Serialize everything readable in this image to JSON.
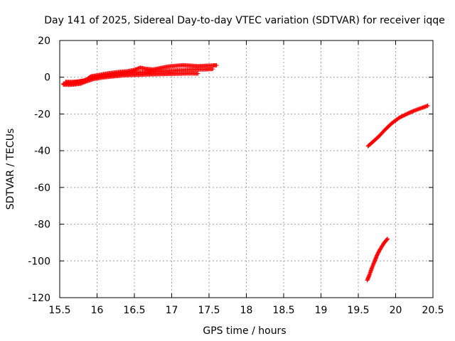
{
  "chart_data": {
    "type": "scatter",
    "title": "Day 141 of 2025, Sidereal Day-to-day VTEC variation (SDTVAR) for receiver iqqe",
    "xlabel": "GPS time / hours",
    "ylabel": "SDTVAR / TECUs",
    "xlim": [
      15.5,
      20.5
    ],
    "ylim": [
      -120,
      20
    ],
    "xticks": [
      "15.5",
      "16",
      "16.5",
      "17",
      "17.5",
      "18",
      "18.5",
      "19",
      "19.5",
      "20",
      "20.5"
    ],
    "yticks": [
      "20",
      "0",
      "-20",
      "-40",
      "-60",
      "-80",
      "-100",
      "-120"
    ],
    "grid": true,
    "marker": "plus",
    "color": "#ff0000",
    "segments": [
      {
        "x": [
          15.55,
          15.62,
          15.7,
          15.78,
          15.85,
          15.92,
          16.0,
          16.1,
          16.2,
          16.3,
          16.4,
          16.5,
          16.58,
          16.65,
          16.75,
          16.85,
          16.95,
          17.05,
          17.15,
          17.25,
          17.35,
          17.45,
          17.55,
          17.6
        ],
        "y": [
          -3.5,
          -3.2,
          -2.8,
          -2.2,
          -1.5,
          0.5,
          1.0,
          1.8,
          2.4,
          2.9,
          3.2,
          4.0,
          5.2,
          4.6,
          4.2,
          5.0,
          5.8,
          6.2,
          6.5,
          6.3,
          6.0,
          6.2,
          6.4,
          6.5
        ]
      },
      {
        "x": [
          15.55,
          15.62,
          15.7,
          15.78,
          15.85,
          15.95,
          16.05,
          16.15,
          16.25,
          16.35,
          16.45,
          16.55,
          16.65,
          16.75,
          16.85,
          16.95,
          17.05,
          17.15,
          17.25,
          17.35
        ],
        "y": [
          -4.0,
          -4.1,
          -3.9,
          -3.5,
          -2.4,
          -1.0,
          -0.3,
          0.2,
          0.6,
          1.0,
          1.2,
          1.3,
          1.5,
          1.6,
          1.7,
          1.8,
          1.9,
          2.0,
          2.1,
          2.0
        ]
      },
      {
        "x": [
          15.58,
          15.66,
          15.75,
          15.83,
          15.92,
          16.02,
          16.12,
          16.22,
          16.32,
          16.45,
          16.55,
          16.7,
          16.85,
          17.0,
          17.15,
          17.3,
          17.45,
          17.55
        ],
        "y": [
          -2.5,
          -2.6,
          -2.3,
          -1.8,
          -0.5,
          0.2,
          0.8,
          1.3,
          1.8,
          2.3,
          2.6,
          3.0,
          3.3,
          3.6,
          3.9,
          4.1,
          4.3,
          4.5
        ]
      },
      {
        "x": [
          19.63,
          19.7,
          19.78,
          19.86,
          19.95,
          20.05,
          20.15,
          20.25,
          20.35,
          20.43
        ],
        "y": [
          -37.5,
          -35.0,
          -32.0,
          -28.5,
          -25.0,
          -22.0,
          -20.0,
          -18.2,
          -16.7,
          -15.5
        ]
      },
      {
        "x": [
          19.62,
          19.65,
          19.68,
          19.72,
          19.75,
          19.78,
          19.81,
          19.84,
          19.87,
          19.89
        ],
        "y": [
          -110.5,
          -107.5,
          -104.0,
          -100.0,
          -97.0,
          -94.5,
          -92.5,
          -90.5,
          -89.0,
          -88.0
        ]
      }
    ]
  }
}
